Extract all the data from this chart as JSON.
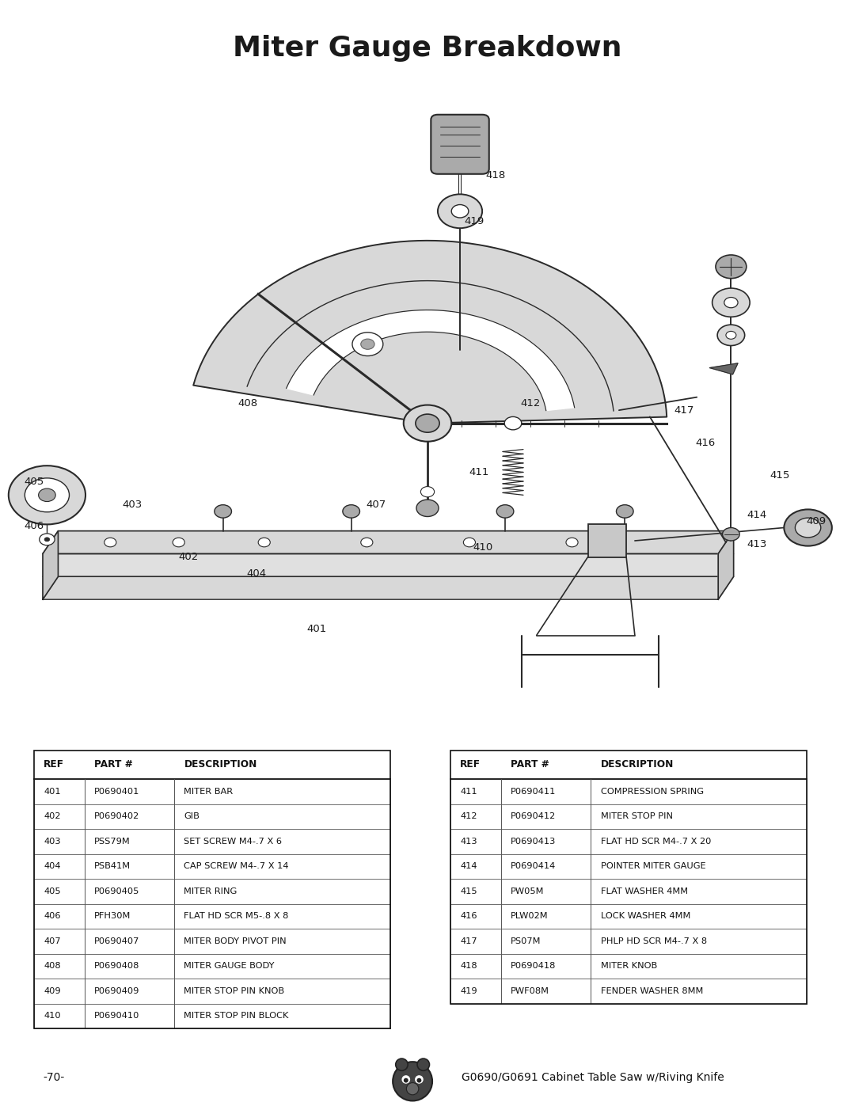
{
  "title": "Miter Gauge Breakdown",
  "title_fontsize": 26,
  "title_fontweight": "bold",
  "background_color": "#ffffff",
  "text_color": "#1a1a1a",
  "table1": {
    "headers": [
      "REF",
      "PART #",
      "DESCRIPTION"
    ],
    "rows": [
      [
        "401",
        "P0690401",
        "MITER BAR"
      ],
      [
        "402",
        "P0690402",
        "GIB"
      ],
      [
        "403",
        "PSS79M",
        "SET SCREW M4-.7 X 6"
      ],
      [
        "404",
        "PSB41M",
        "CAP SCREW M4-.7 X 14"
      ],
      [
        "405",
        "P0690405",
        "MITER RING"
      ],
      [
        "406",
        "PFH30M",
        "FLAT HD SCR M5-.8 X 8"
      ],
      [
        "407",
        "P0690407",
        "MITER BODY PIVOT PIN"
      ],
      [
        "408",
        "P0690408",
        "MITER GAUGE BODY"
      ],
      [
        "409",
        "P0690409",
        "MITER STOP PIN KNOB"
      ],
      [
        "410",
        "P0690410",
        "MITER STOP PIN BLOCK"
      ]
    ]
  },
  "table2": {
    "headers": [
      "REF",
      "PART #",
      "DESCRIPTION"
    ],
    "rows": [
      [
        "411",
        "P0690411",
        "COMPRESSION SPRING"
      ],
      [
        "412",
        "P0690412",
        "MITER STOP PIN"
      ],
      [
        "413",
        "P0690413",
        "FLAT HD SCR M4-.7 X 20"
      ],
      [
        "414",
        "P0690414",
        "POINTER MITER GAUGE"
      ],
      [
        "415",
        "PW05M",
        "FLAT WASHER 4MM"
      ],
      [
        "416",
        "PLW02M",
        "LOCK WASHER 4MM"
      ],
      [
        "417",
        "PS07M",
        "PHLP HD SCR M4-.7 X 8"
      ],
      [
        "418",
        "P0690418",
        "MITER KNOB"
      ],
      [
        "419",
        "PWF08M",
        "FENDER WASHER 8MM"
      ]
    ]
  },
  "footer_left": "-70-",
  "footer_right": "G0690/G0691 Cabinet Table Saw w/Riving Knife"
}
